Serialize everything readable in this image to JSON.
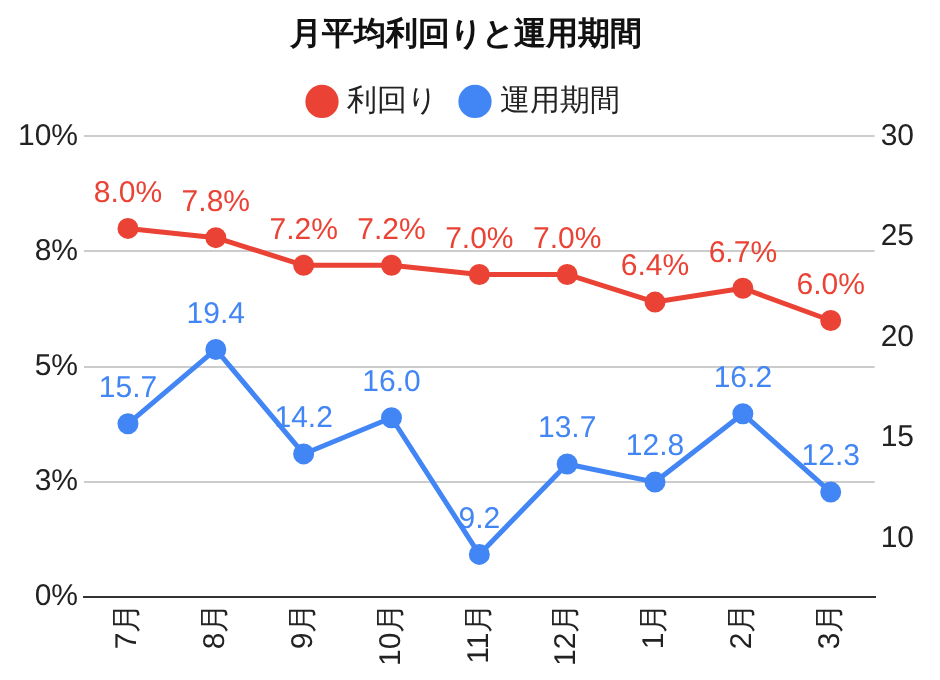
{
  "chart_data": {
    "type": "line",
    "title": "月平均利回りと運用期間",
    "categories": [
      "7月",
      "8月",
      "9月",
      "10月",
      "11月",
      "12月",
      "1月",
      "2月",
      "3月"
    ],
    "series": [
      {
        "name": "利回り",
        "color": "#ea4335",
        "values": [
          8.0,
          7.8,
          7.2,
          7.2,
          7.0,
          7.0,
          6.4,
          6.7,
          6.0
        ],
        "value_labels": [
          "8.0%",
          "7.8%",
          "7.2%",
          "7.2%",
          "7.0%",
          "7.0%",
          "6.4%",
          "6.7%",
          "6.0%"
        ]
      },
      {
        "name": "運用期間",
        "color": "#4285f4",
        "axis": "y2",
        "values": [
          15.7,
          19.4,
          14.2,
          16.0,
          9.2,
          13.7,
          12.8,
          16.2,
          12.3
        ],
        "value_labels": [
          "15.7",
          "19.4",
          "14.2",
          "16.0",
          "9.2",
          "13.7",
          "12.8",
          "16.2",
          "12.3"
        ]
      }
    ],
    "ylim": [
      0,
      10
    ],
    "yticks": [
      {
        "value": 0,
        "label": "0%"
      },
      {
        "value": 2.5,
        "label": "3%"
      },
      {
        "value": 5,
        "label": "5%"
      },
      {
        "value": 7.5,
        "label": "8%"
      },
      {
        "value": 10,
        "label": "10%"
      }
    ],
    "y2lim": [
      7.1,
      30
    ],
    "y2ticks": [
      10,
      15,
      20,
      25,
      30
    ],
    "grid": "y",
    "legend": "top",
    "marker": "circle",
    "line_style": "solid"
  }
}
